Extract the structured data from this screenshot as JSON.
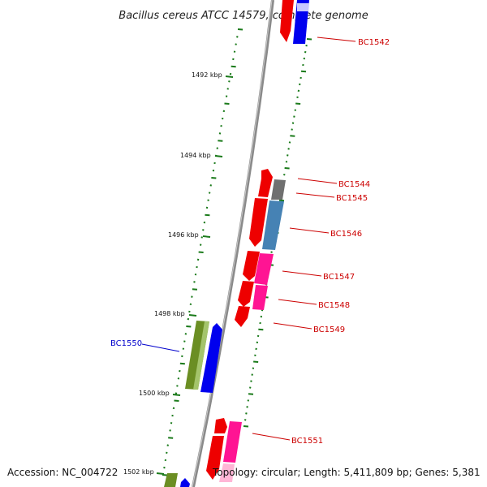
{
  "title": "Bacillus cereus ATCC 14579, complete genome",
  "footer": {
    "accession": "Accession: NC_004722",
    "topology": "Topology: circular; Length: 5,411,809 bp; Genes: 5,381"
  },
  "colors": {
    "forward_gene": "#ff0000",
    "reverse_gene_blue": "#0000ff",
    "reverse_gene_pink": "#ff1493",
    "reverse_gene_steel": "#4682b4",
    "reverse_gene_olive": "#6b8e23",
    "reverse_gene_gray": "#777777",
    "tick_green": "#1a7a1a",
    "backbone": "#888888",
    "label_red": "#cc0000",
    "label_blue": "#0000cc"
  },
  "kbp_ticks": [
    {
      "label": "1492 kbp"
    },
    {
      "label": "1494 kbp"
    },
    {
      "label": "1496 kbp"
    },
    {
      "label": "1498 kbp"
    },
    {
      "label": "1500 kbp"
    },
    {
      "label": "1502 kbp"
    }
  ],
  "genes": [
    {
      "name": "BC1542",
      "color": "label_red"
    },
    {
      "name": "BC1544",
      "color": "label_red"
    },
    {
      "name": "BC1545",
      "color": "label_red"
    },
    {
      "name": "BC1546",
      "color": "label_red"
    },
    {
      "name": "BC1547",
      "color": "label_red"
    },
    {
      "name": "BC1548",
      "color": "label_red"
    },
    {
      "name": "BC1549",
      "color": "label_red"
    },
    {
      "name": "BC1550",
      "color": "label_blue"
    },
    {
      "name": "BC1551",
      "color": "label_red"
    }
  ]
}
